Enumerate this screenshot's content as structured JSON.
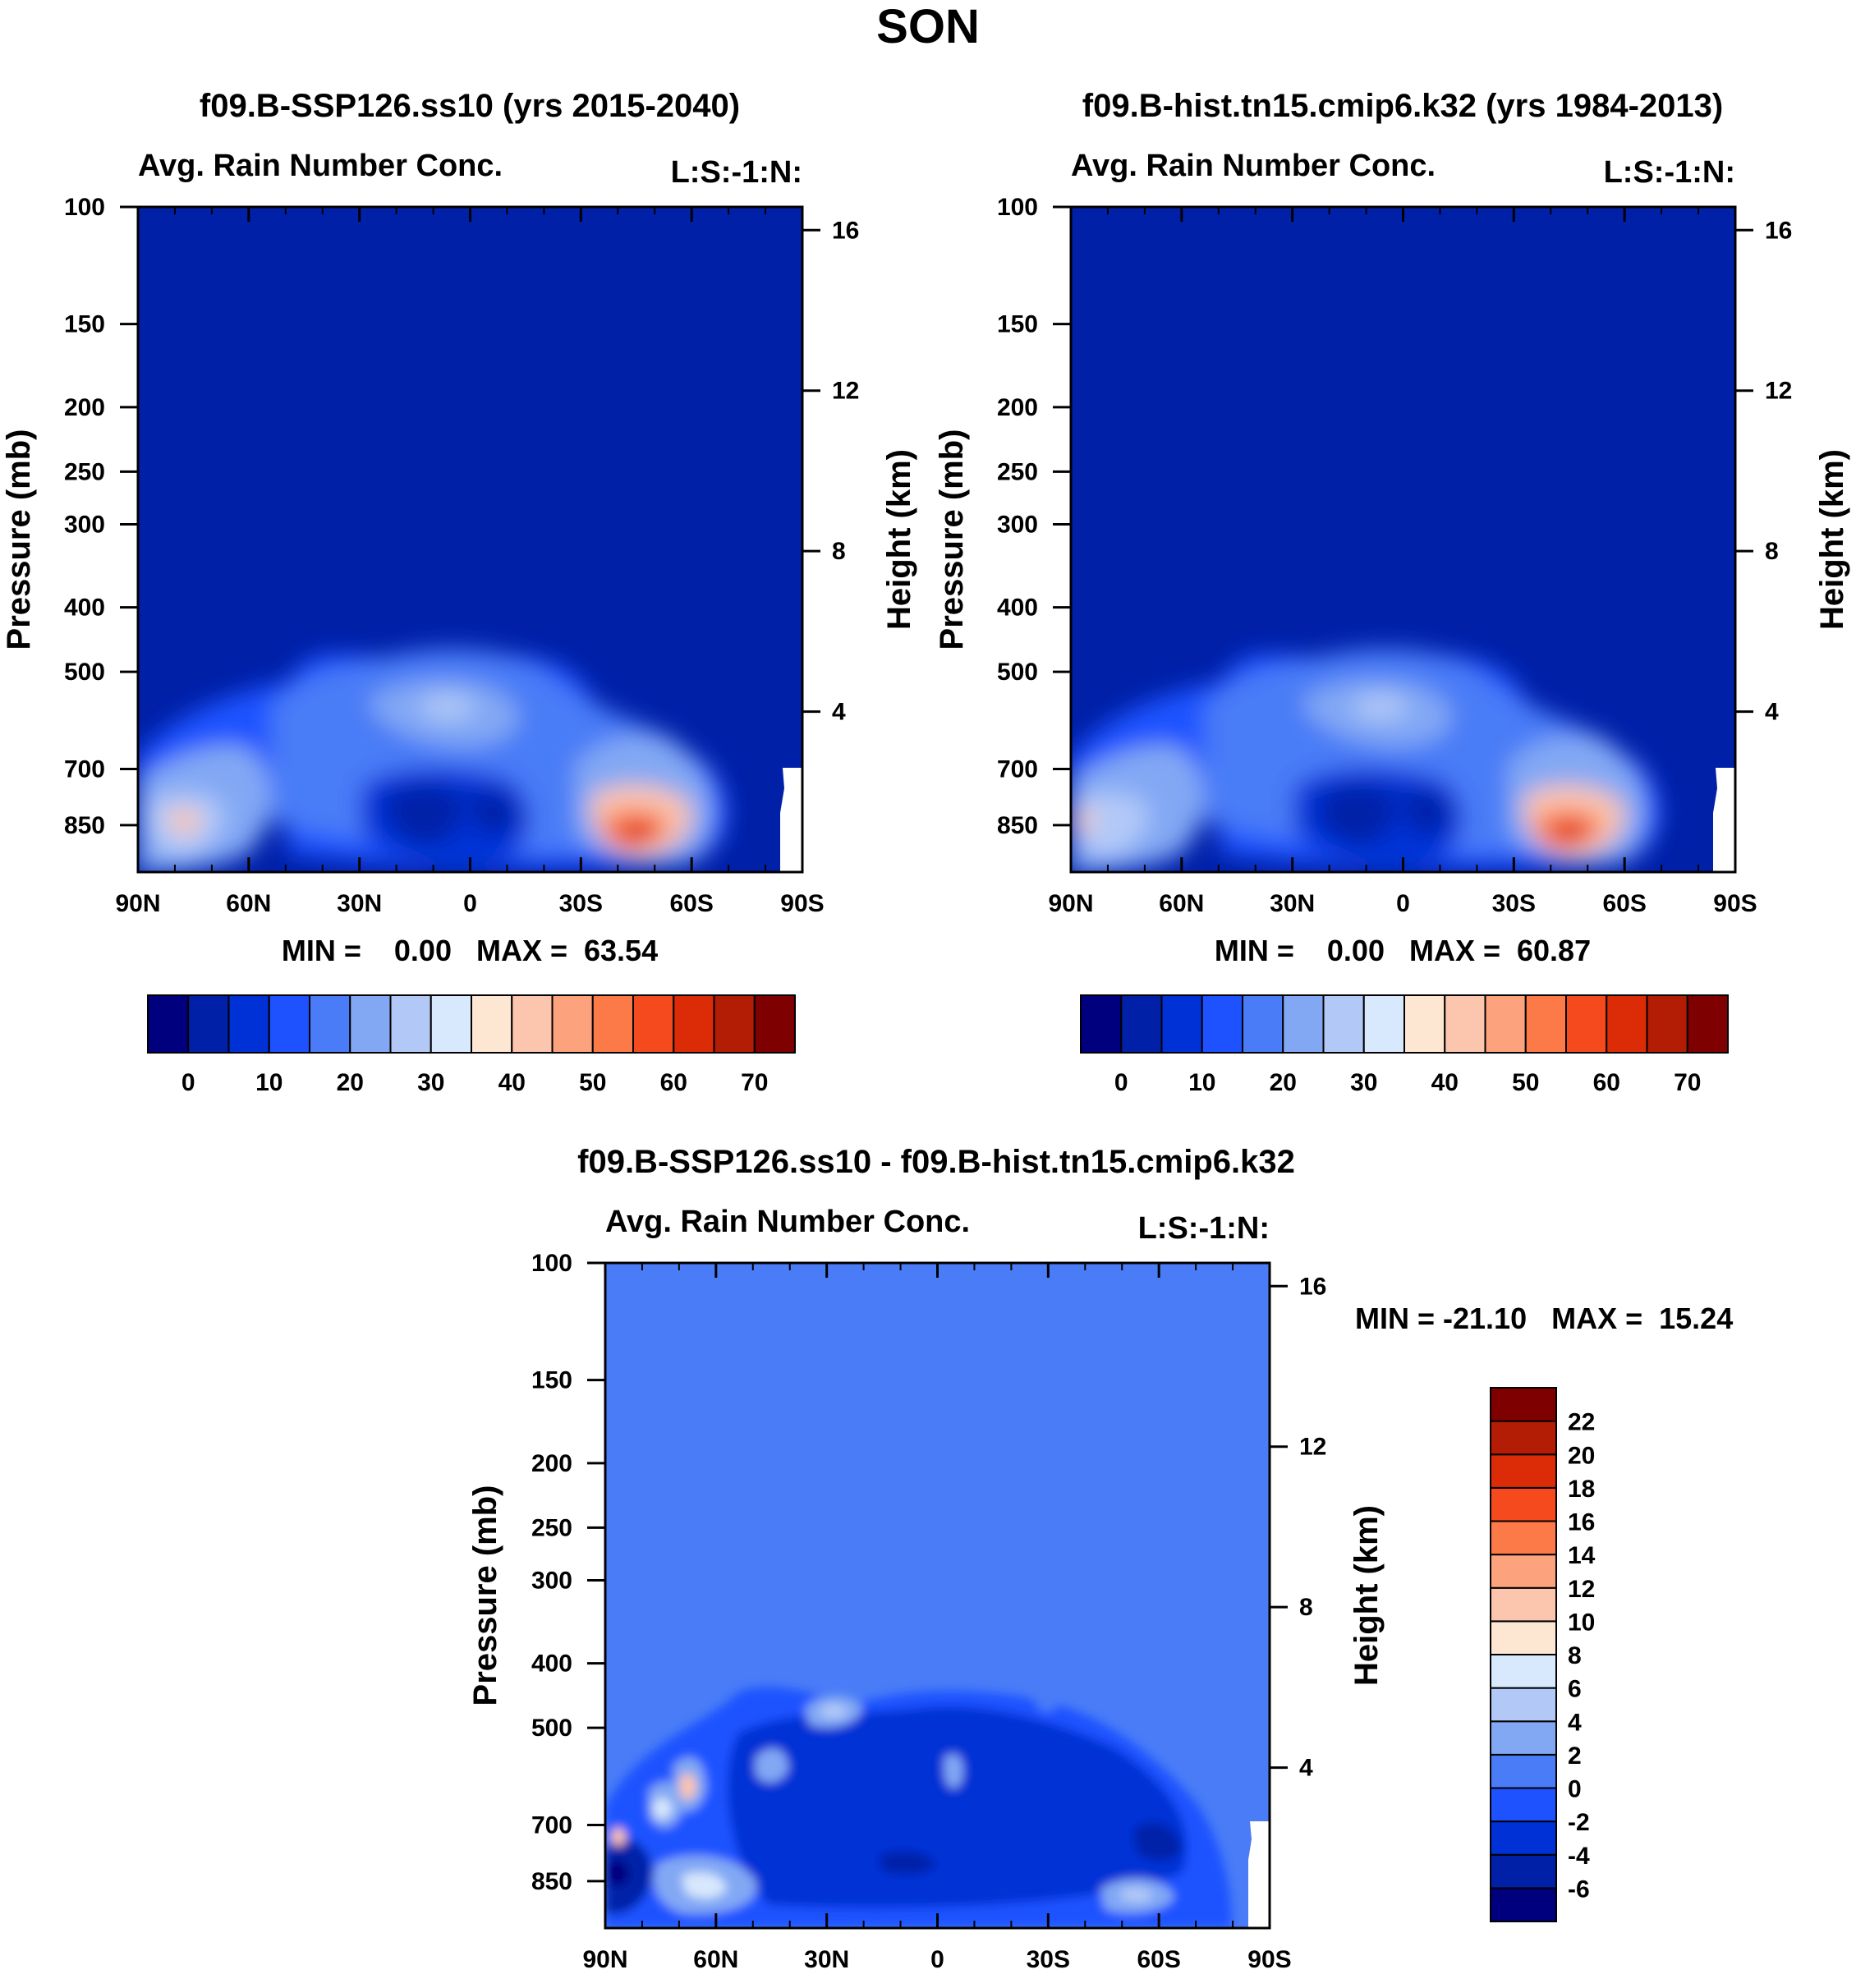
{
  "figure_title": "SON",
  "chart_data": [
    {
      "type": "heatmap",
      "id": "panel1",
      "title": "f09.B-SSP126.ss10 (yrs 2015-2040)",
      "subtitle_left": "Avg. Rain Number Conc.",
      "subtitle_right": "L:S:-1:N:",
      "ylabel": "Pressure (mb)",
      "ylabel_right": "Height (km)",
      "x_ticks": [
        "90N",
        "60N",
        "30N",
        "0",
        "30S",
        "60S",
        "90S"
      ],
      "y_ticks": [
        "100",
        "150",
        "200",
        "250",
        "300",
        "400",
        "500",
        "700",
        "850"
      ],
      "y2_ticks": [
        "16",
        "12",
        "8",
        "4"
      ],
      "stats": "MIN =    0.00   MAX =  63.54",
      "min": 0.0,
      "max": 63.54,
      "colorbar": {
        "orientation": "horizontal",
        "colors": [
          "#00007f",
          "#0020a8",
          "#0031d6",
          "#1f52ff",
          "#4a7cf7",
          "#82a8f4",
          "#b2c9f8",
          "#d8e8fd",
          "#fde7d3",
          "#fcc5ad",
          "#fca27d",
          "#fb7a48",
          "#f44a1e",
          "#db2c07",
          "#b31c05",
          "#7f0000"
        ],
        "labels": [
          "0",
          "10",
          "20",
          "30",
          "40",
          "50",
          "60",
          "70"
        ]
      }
    },
    {
      "type": "heatmap",
      "id": "panel2",
      "title": "f09.B-hist.tn15.cmip6.k32 (yrs 1984-2013)",
      "subtitle_left": "Avg. Rain Number Conc.",
      "subtitle_right": "L:S:-1:N:",
      "ylabel": "Pressure (mb)",
      "ylabel_right": "Height (km)",
      "x_ticks": [
        "90N",
        "60N",
        "30N",
        "0",
        "30S",
        "60S",
        "90S"
      ],
      "y_ticks": [
        "100",
        "150",
        "200",
        "250",
        "300",
        "400",
        "500",
        "700",
        "850"
      ],
      "y2_ticks": [
        "16",
        "12",
        "8",
        "4"
      ],
      "stats": "MIN =    0.00   MAX =  60.87",
      "min": 0.0,
      "max": 60.87,
      "colorbar": {
        "orientation": "horizontal",
        "colors": [
          "#00007f",
          "#0020a8",
          "#0031d6",
          "#1f52ff",
          "#4a7cf7",
          "#82a8f4",
          "#b2c9f8",
          "#d8e8fd",
          "#fde7d3",
          "#fcc5ad",
          "#fca27d",
          "#fb7a48",
          "#f44a1e",
          "#db2c07",
          "#b31c05",
          "#7f0000"
        ],
        "labels": [
          "0",
          "10",
          "20",
          "30",
          "40",
          "50",
          "60",
          "70"
        ]
      }
    },
    {
      "type": "heatmap",
      "id": "panel3",
      "title": "f09.B-SSP126.ss10 - f09.B-hist.tn15.cmip6.k32",
      "subtitle_left": "Avg. Rain Number Conc.",
      "subtitle_right": "L:S:-1:N:",
      "ylabel": "Pressure (mb)",
      "ylabel_right": "Height (km)",
      "x_ticks": [
        "90N",
        "60N",
        "30N",
        "0",
        "30S",
        "60S",
        "90S"
      ],
      "y_ticks": [
        "100",
        "150",
        "200",
        "250",
        "300",
        "400",
        "500",
        "700",
        "850"
      ],
      "y2_ticks": [
        "16",
        "12",
        "8",
        "4"
      ],
      "stats": "MIN = -21.10   MAX =  15.24",
      "min": -21.1,
      "max": 15.24,
      "colorbar": {
        "orientation": "vertical",
        "colors": [
          "#00007f",
          "#0020a8",
          "#0031d6",
          "#1f52ff",
          "#4a7cf7",
          "#82a8f4",
          "#b2c9f8",
          "#d8e8fd",
          "#fde7d3",
          "#fcc5ad",
          "#fca27d",
          "#fb7a48",
          "#f44a1e",
          "#db2c07",
          "#b31c05",
          "#7f0000"
        ],
        "labels": [
          "-6",
          "-4",
          "-2",
          "0",
          "2",
          "4",
          "6",
          "8",
          "10",
          "12",
          "14",
          "16",
          "18",
          "20",
          "22"
        ]
      }
    }
  ]
}
